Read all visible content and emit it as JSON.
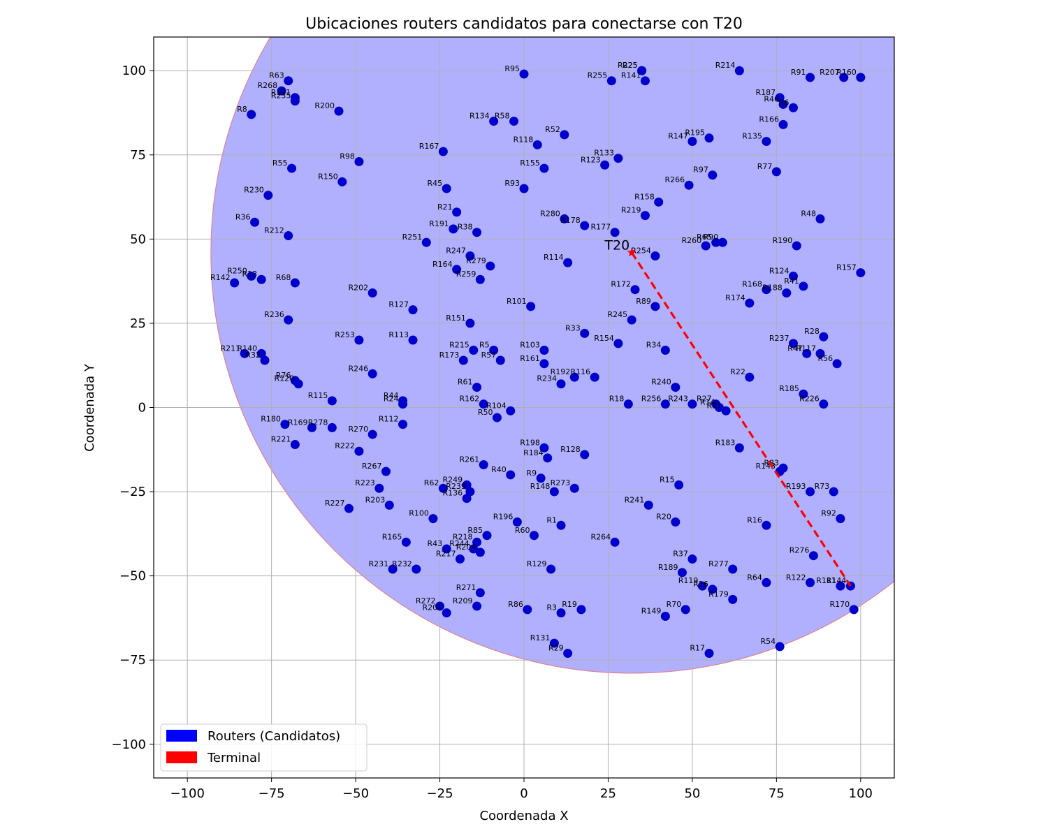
{
  "chart_data": {
    "type": "scatter",
    "title": "Ubicaciones routers candidatos para conectarse con T20",
    "xlabel": "Coordenada X",
    "ylabel": "Coordenada Y",
    "xlim": [
      -110,
      110
    ],
    "ylim": [
      -110,
      110
    ],
    "x_ticks": [
      -100,
      -75,
      -50,
      -25,
      0,
      25,
      50,
      75,
      100
    ],
    "y_ticks": [
      -100,
      -75,
      -50,
      -25,
      0,
      25,
      50,
      75,
      100
    ],
    "x_tick_labels": [
      "−100",
      "−75",
      "−50",
      "−25",
      "0",
      "25",
      "50",
      "75",
      "100"
    ],
    "y_tick_labels": [
      "−100",
      "−75",
      "−50",
      "−25",
      "0",
      "25",
      "50",
      "75",
      "100"
    ],
    "grid": true,
    "legend_position": "lower-left",
    "legend": [
      {
        "label": "Routers (Candidatos)",
        "color": "#0000ff"
      },
      {
        "label": "Terminal",
        "color": "#ff0000"
      }
    ],
    "coverage_circle": {
      "center": [
        32,
        46
      ],
      "radius": 125,
      "fill": "#b0b0ff",
      "edge": "#e08090"
    },
    "terminal": {
      "label": "T20",
      "x": 32,
      "y": 46,
      "color": "#ff0000"
    },
    "connection_line": {
      "from": [
        32,
        46
      ],
      "to": [
        97,
        -53
      ],
      "color": "#ff0000"
    },
    "router_color": "#0000cc",
    "routers": [
      {
        "name": "R63",
        "x": -70,
        "y": 97
      },
      {
        "name": "R268",
        "x": -72,
        "y": 94
      },
      {
        "name": "R171",
        "x": -68,
        "y": 92
      },
      {
        "name": "R235",
        "x": -68,
        "y": 91
      },
      {
        "name": "R8",
        "x": -81,
        "y": 87
      },
      {
        "name": "R200",
        "x": -55,
        "y": 88
      },
      {
        "name": "R95",
        "x": 0,
        "y": 99
      },
      {
        "name": "R134",
        "x": -9,
        "y": 85
      },
      {
        "name": "R58",
        "x": -3,
        "y": 85
      },
      {
        "name": "R52",
        "x": 12,
        "y": 81
      },
      {
        "name": "R118",
        "x": 4,
        "y": 78
      },
      {
        "name": "R167",
        "x": -24,
        "y": 76
      },
      {
        "name": "R255",
        "x": 26,
        "y": 97
      },
      {
        "name": "R225",
        "x": 35,
        "y": 100
      },
      {
        "name": "R25",
        "x": 35,
        "y": 100
      },
      {
        "name": "R141",
        "x": 36,
        "y": 97
      },
      {
        "name": "R214",
        "x": 64,
        "y": 100
      },
      {
        "name": "R91",
        "x": 85,
        "y": 98
      },
      {
        "name": "R207",
        "x": 95,
        "y": 98
      },
      {
        "name": "R160",
        "x": 100,
        "y": 98
      },
      {
        "name": "R187",
        "x": 76,
        "y": 92
      },
      {
        "name": "R46",
        "x": 77,
        "y": 90
      },
      {
        "name": "R6",
        "x": 80,
        "y": 89
      },
      {
        "name": "R166",
        "x": 77,
        "y": 84
      },
      {
        "name": "R135",
        "x": 72,
        "y": 79
      },
      {
        "name": "R147",
        "x": 50,
        "y": 79
      },
      {
        "name": "R195",
        "x": 55,
        "y": 80
      },
      {
        "name": "R55",
        "x": -69,
        "y": 71
      },
      {
        "name": "R98",
        "x": -49,
        "y": 73
      },
      {
        "name": "R150",
        "x": -54,
        "y": 67
      },
      {
        "name": "R155",
        "x": 6,
        "y": 71
      },
      {
        "name": "R133",
        "x": 28,
        "y": 74
      },
      {
        "name": "R123",
        "x": 24,
        "y": 72
      },
      {
        "name": "R97",
        "x": 56,
        "y": 69
      },
      {
        "name": "R77",
        "x": 75,
        "y": 70
      },
      {
        "name": "R230",
        "x": -76,
        "y": 63
      },
      {
        "name": "R45",
        "x": -23,
        "y": 65
      },
      {
        "name": "R93",
        "x": 0,
        "y": 65
      },
      {
        "name": "R266",
        "x": 49,
        "y": 66
      },
      {
        "name": "R158",
        "x": 40,
        "y": 61
      },
      {
        "name": "R21",
        "x": -20,
        "y": 58
      },
      {
        "name": "R36",
        "x": -80,
        "y": 55
      },
      {
        "name": "R212",
        "x": -70,
        "y": 51
      },
      {
        "name": "R191",
        "x": -21,
        "y": 53
      },
      {
        "name": "R38",
        "x": -14,
        "y": 52
      },
      {
        "name": "R251",
        "x": -29,
        "y": 49
      },
      {
        "name": "R280",
        "x": 12,
        "y": 56
      },
      {
        "name": "R178",
        "x": 18,
        "y": 54
      },
      {
        "name": "R219",
        "x": 36,
        "y": 57
      },
      {
        "name": "R177",
        "x": 27,
        "y": 52
      },
      {
        "name": "R48",
        "x": 88,
        "y": 56
      },
      {
        "name": "R260",
        "x": 54,
        "y": 48
      },
      {
        "name": "R65",
        "x": 57,
        "y": 49
      },
      {
        "name": "R90",
        "x": 59,
        "y": 49
      },
      {
        "name": "R190",
        "x": 81,
        "y": 48
      },
      {
        "name": "R247",
        "x": -16,
        "y": 45
      },
      {
        "name": "R279",
        "x": -10,
        "y": 42
      },
      {
        "name": "R164",
        "x": -20,
        "y": 41
      },
      {
        "name": "R259",
        "x": -13,
        "y": 38
      },
      {
        "name": "R114",
        "x": 13,
        "y": 43
      },
      {
        "name": "R254",
        "x": 39,
        "y": 45
      },
      {
        "name": "R157",
        "x": 100,
        "y": 40
      },
      {
        "name": "R142",
        "x": -86,
        "y": 37
      },
      {
        "name": "R250",
        "x": -81,
        "y": 39
      },
      {
        "name": "R13",
        "x": -78,
        "y": 38
      },
      {
        "name": "R68",
        "x": -68,
        "y": 37
      },
      {
        "name": "R202",
        "x": -45,
        "y": 34
      },
      {
        "name": "R124",
        "x": 80,
        "y": 39
      },
      {
        "name": "R41",
        "x": 83,
        "y": 36
      },
      {
        "name": "R168",
        "x": 72,
        "y": 35
      },
      {
        "name": "R188",
        "x": 78,
        "y": 34
      },
      {
        "name": "R172",
        "x": 33,
        "y": 35
      },
      {
        "name": "R127",
        "x": -33,
        "y": 29
      },
      {
        "name": "R101",
        "x": 2,
        "y": 30
      },
      {
        "name": "R89",
        "x": 39,
        "y": 30
      },
      {
        "name": "R174",
        "x": 67,
        "y": 31
      },
      {
        "name": "R236",
        "x": -70,
        "y": 26
      },
      {
        "name": "R151",
        "x": -16,
        "y": 25
      },
      {
        "name": "R245",
        "x": 32,
        "y": 26
      },
      {
        "name": "R33",
        "x": 18,
        "y": 22
      },
      {
        "name": "R253",
        "x": -49,
        "y": 20
      },
      {
        "name": "R113",
        "x": -33,
        "y": 20
      },
      {
        "name": "R154",
        "x": 28,
        "y": 19
      },
      {
        "name": "R28",
        "x": 89,
        "y": 21
      },
      {
        "name": "R237",
        "x": 80,
        "y": 19
      },
      {
        "name": "R211",
        "x": -83,
        "y": 16
      },
      {
        "name": "R140",
        "x": -78,
        "y": 16
      },
      {
        "name": "R32",
        "x": -77,
        "y": 14
      },
      {
        "name": "R215",
        "x": -15,
        "y": 17
      },
      {
        "name": "R5",
        "x": -9,
        "y": 17
      },
      {
        "name": "R173",
        "x": -18,
        "y": 14
      },
      {
        "name": "R57",
        "x": -7,
        "y": 14
      },
      {
        "name": "R103",
        "x": 6,
        "y": 17
      },
      {
        "name": "R161",
        "x": 6,
        "y": 13
      },
      {
        "name": "R34",
        "x": 42,
        "y": 17
      },
      {
        "name": "R47",
        "x": 84,
        "y": 16
      },
      {
        "name": "R117",
        "x": 88,
        "y": 16
      },
      {
        "name": "R56",
        "x": 93,
        "y": 13
      },
      {
        "name": "R246",
        "x": -45,
        "y": 10
      },
      {
        "name": "R192",
        "x": 15,
        "y": 9
      },
      {
        "name": "R116",
        "x": 21,
        "y": 9
      },
      {
        "name": "R234",
        "x": 11,
        "y": 7
      },
      {
        "name": "R22",
        "x": 67,
        "y": 9
      },
      {
        "name": "R76",
        "x": -68,
        "y": 8
      },
      {
        "name": "R120",
        "x": -67,
        "y": 7
      },
      {
        "name": "R61",
        "x": -14,
        "y": 6
      },
      {
        "name": "R240",
        "x": 45,
        "y": 6
      },
      {
        "name": "R185",
        "x": 83,
        "y": 4
      },
      {
        "name": "R115",
        "x": -57,
        "y": 2
      },
      {
        "name": "R44",
        "x": -36,
        "y": 2
      },
      {
        "name": "R24",
        "x": -36,
        "y": 1
      },
      {
        "name": "R162",
        "x": -12,
        "y": 1
      },
      {
        "name": "R104",
        "x": -4,
        "y": -1
      },
      {
        "name": "R18",
        "x": 31,
        "y": 1
      },
      {
        "name": "R256",
        "x": 42,
        "y": 1
      },
      {
        "name": "R243",
        "x": 50,
        "y": 1
      },
      {
        "name": "R27",
        "x": 57,
        "y": 1
      },
      {
        "name": "R14",
        "x": 58,
        "y": 0
      },
      {
        "name": "R11",
        "x": 60,
        "y": -1
      },
      {
        "name": "R226",
        "x": 89,
        "y": 1
      },
      {
        "name": "R50",
        "x": -8,
        "y": -3
      },
      {
        "name": "R180",
        "x": -71,
        "y": -5
      },
      {
        "name": "R169",
        "x": -63,
        "y": -6
      },
      {
        "name": "R278",
        "x": -57,
        "y": -6
      },
      {
        "name": "R112",
        "x": -36,
        "y": -5
      },
      {
        "name": "R270",
        "x": -45,
        "y": -8
      },
      {
        "name": "R221",
        "x": -68,
        "y": -11
      },
      {
        "name": "R222",
        "x": -49,
        "y": -13
      },
      {
        "name": "R198",
        "x": 6,
        "y": -12
      },
      {
        "name": "R184",
        "x": 7,
        "y": -15
      },
      {
        "name": "R128",
        "x": 18,
        "y": -14
      },
      {
        "name": "R183",
        "x": 64,
        "y": -12
      },
      {
        "name": "R261",
        "x": -12,
        "y": -17
      },
      {
        "name": "R267",
        "x": -41,
        "y": -19
      },
      {
        "name": "R40",
        "x": -4,
        "y": -20
      },
      {
        "name": "R9",
        "x": 5,
        "y": -21
      },
      {
        "name": "R83",
        "x": 77,
        "y": -18
      },
      {
        "name": "R143",
        "x": 76,
        "y": -19
      },
      {
        "name": "R223",
        "x": -43,
        "y": -24
      },
      {
        "name": "R62",
        "x": -24,
        "y": -24
      },
      {
        "name": "R249",
        "x": -17,
        "y": -23
      },
      {
        "name": "R239",
        "x": -16,
        "y": -25
      },
      {
        "name": "R136",
        "x": -17,
        "y": -27
      },
      {
        "name": "R273",
        "x": 15,
        "y": -24
      },
      {
        "name": "R148",
        "x": 9,
        "y": -25
      },
      {
        "name": "R15",
        "x": 46,
        "y": -23
      },
      {
        "name": "R193",
        "x": 85,
        "y": -25
      },
      {
        "name": "R73",
        "x": 92,
        "y": -25
      },
      {
        "name": "R203",
        "x": -40,
        "y": -29
      },
      {
        "name": "R241",
        "x": 37,
        "y": -29
      },
      {
        "name": "R227",
        "x": -52,
        "y": -30
      },
      {
        "name": "R100",
        "x": -27,
        "y": -33
      },
      {
        "name": "R196",
        "x": -2,
        "y": -34
      },
      {
        "name": "R1",
        "x": 11,
        "y": -35
      },
      {
        "name": "R20",
        "x": 45,
        "y": -34
      },
      {
        "name": "R16",
        "x": 72,
        "y": -35
      },
      {
        "name": "R92",
        "x": 94,
        "y": -33
      },
      {
        "name": "R85",
        "x": -11,
        "y": -38
      },
      {
        "name": "R60",
        "x": 3,
        "y": -38
      },
      {
        "name": "R165",
        "x": -35,
        "y": -40
      },
      {
        "name": "R218",
        "x": -14,
        "y": -40
      },
      {
        "name": "R264",
        "x": 27,
        "y": -40
      },
      {
        "name": "R43",
        "x": -23,
        "y": -42
      },
      {
        "name": "R244",
        "x": -15,
        "y": -42
      },
      {
        "name": "R204",
        "x": -13,
        "y": -43
      },
      {
        "name": "R217",
        "x": -19,
        "y": -45
      },
      {
        "name": "R276",
        "x": 86,
        "y": -44
      },
      {
        "name": "R37",
        "x": 50,
        "y": -45
      },
      {
        "name": "R231",
        "x": -39,
        "y": -48
      },
      {
        "name": "R232",
        "x": -32,
        "y": -48
      },
      {
        "name": "R129",
        "x": 8,
        "y": -48
      },
      {
        "name": "R189",
        "x": 47,
        "y": -49
      },
      {
        "name": "R277",
        "x": 62,
        "y": -48
      },
      {
        "name": "R64",
        "x": 72,
        "y": -52
      },
      {
        "name": "R122",
        "x": 85,
        "y": -52
      },
      {
        "name": "R111",
        "x": 94,
        "y": -53
      },
      {
        "name": "R144",
        "x": 97,
        "y": -53
      },
      {
        "name": "R119",
        "x": 53,
        "y": -53
      },
      {
        "name": "R26",
        "x": 56,
        "y": -54
      },
      {
        "name": "R271",
        "x": -13,
        "y": -55
      },
      {
        "name": "R179",
        "x": 62,
        "y": -57
      },
      {
        "name": "R272",
        "x": -25,
        "y": -59
      },
      {
        "name": "R209",
        "x": -14,
        "y": -59
      },
      {
        "name": "R201",
        "x": -23,
        "y": -61
      },
      {
        "name": "R86",
        "x": 1,
        "y": -60
      },
      {
        "name": "R3",
        "x": 11,
        "y": -61
      },
      {
        "name": "R19",
        "x": 17,
        "y": -60
      },
      {
        "name": "R70",
        "x": 48,
        "y": -60
      },
      {
        "name": "R149",
        "x": 42,
        "y": -62
      },
      {
        "name": "R170",
        "x": 98,
        "y": -60
      },
      {
        "name": "R131",
        "x": 9,
        "y": -70
      },
      {
        "name": "R29",
        "x": 13,
        "y": -73
      },
      {
        "name": "R17",
        "x": 55,
        "y": -73
      },
      {
        "name": "R54",
        "x": 76,
        "y": -71
      }
    ]
  }
}
